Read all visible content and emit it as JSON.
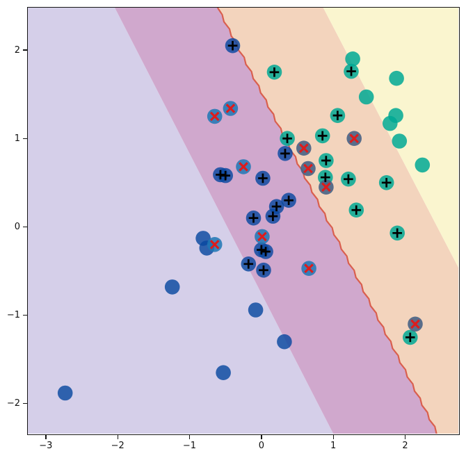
{
  "figure": {
    "background": "#ffffff",
    "border_color": "#151515"
  },
  "chart_data": {
    "type": "scatter",
    "title": "",
    "xlabel": "",
    "ylabel": "",
    "grid": false,
    "legend": null,
    "xlim": [
      -3.25,
      2.74
    ],
    "ylim": [
      -2.34,
      2.48
    ],
    "x_ticks": [
      {
        "value": -3,
        "label": "−3"
      },
      {
        "value": -2,
        "label": "−2"
      },
      {
        "value": -1,
        "label": "−1"
      },
      {
        "value": 0,
        "label": "0"
      },
      {
        "value": 1,
        "label": "1"
      },
      {
        "value": 2,
        "label": "2"
      }
    ],
    "y_ticks": [
      {
        "value": 2,
        "label": "2"
      },
      {
        "value": 1,
        "label": "1"
      },
      {
        "value": 0,
        "label": "0"
      },
      {
        "value": -1,
        "label": "−1"
      },
      {
        "value": -2,
        "label": "−2"
      }
    ],
    "background_regions": [
      {
        "name": "blue-class-region",
        "color": "#d5cfe9",
        "polygon": [
          [
            -3.25,
            2.48
          ],
          [
            -2.04,
            2.48
          ],
          [
            1.0,
            -2.34
          ],
          [
            -3.25,
            -2.34
          ]
        ]
      },
      {
        "name": "blue-margin-band",
        "color": "#d0a8cd",
        "polygon": [
          [
            -2.04,
            2.48
          ],
          [
            -0.61,
            2.48
          ],
          [
            2.45,
            -2.34
          ],
          [
            1.0,
            -2.34
          ]
        ]
      },
      {
        "name": "teal-margin-band",
        "color": "#f3d4bd",
        "polygon": [
          [
            -0.61,
            2.48
          ],
          [
            0.86,
            2.48
          ],
          [
            2.74,
            -0.46
          ],
          [
            2.74,
            -2.34
          ],
          [
            2.45,
            -2.34
          ]
        ]
      },
      {
        "name": "teal-class-region",
        "color": "#faf5cf",
        "polygon": [
          [
            0.86,
            2.48
          ],
          [
            2.74,
            2.48
          ],
          [
            2.74,
            -0.46
          ]
        ]
      }
    ],
    "decision_boundary": {
      "color": "#d95f4e",
      "width": 2.2,
      "from": [
        -0.61,
        2.48
      ],
      "to": [
        2.45,
        -2.34
      ]
    },
    "classes": {
      "blue": {
        "fill": "rgba(8,72,160,0.82)"
      },
      "teal": {
        "fill": "rgba(0,168,148,0.85)"
      },
      "blue-x": {
        "fill": "rgba(31,119,180,0.85)"
      },
      "teal-x": {
        "fill": "rgba(72,98,132,0.90)"
      }
    },
    "markers": {
      "plus_color": "#000000",
      "cross_color": "#dd1c1c"
    },
    "points": [
      {
        "x": -2.73,
        "y": -1.88,
        "class": "blue",
        "marker": "none"
      },
      {
        "x": -1.24,
        "y": -0.68,
        "class": "blue",
        "marker": "none"
      },
      {
        "x": -0.53,
        "y": -1.65,
        "class": "blue",
        "marker": "none"
      },
      {
        "x": -0.08,
        "y": -0.94,
        "class": "blue",
        "marker": "none"
      },
      {
        "x": 0.32,
        "y": -1.3,
        "class": "blue",
        "marker": "none"
      },
      {
        "x": -0.81,
        "y": -0.13,
        "class": "blue",
        "marker": "none"
      },
      {
        "x": -0.76,
        "y": -0.24,
        "class": "blue",
        "marker": "none"
      },
      {
        "x": 1.27,
        "y": 1.9,
        "class": "teal",
        "marker": "none"
      },
      {
        "x": 1.88,
        "y": 1.68,
        "class": "teal",
        "marker": "none"
      },
      {
        "x": 1.46,
        "y": 1.47,
        "class": "teal",
        "marker": "none"
      },
      {
        "x": 1.87,
        "y": 1.26,
        "class": "teal",
        "marker": "none"
      },
      {
        "x": 1.79,
        "y": 1.17,
        "class": "teal",
        "marker": "none"
      },
      {
        "x": 1.92,
        "y": 0.97,
        "class": "teal",
        "marker": "none"
      },
      {
        "x": 2.24,
        "y": 0.7,
        "class": "teal",
        "marker": "none"
      },
      {
        "x": -0.4,
        "y": 2.05,
        "class": "blue",
        "marker": "plus"
      },
      {
        "x": -0.57,
        "y": 0.59,
        "class": "blue",
        "marker": "plus"
      },
      {
        "x": -0.5,
        "y": 0.58,
        "class": "blue",
        "marker": "plus"
      },
      {
        "x": 0.33,
        "y": 0.83,
        "class": "blue",
        "marker": "plus"
      },
      {
        "x": 0.02,
        "y": 0.55,
        "class": "blue",
        "marker": "plus"
      },
      {
        "x": 0.38,
        "y": 0.3,
        "class": "blue",
        "marker": "plus"
      },
      {
        "x": 0.21,
        "y": 0.23,
        "class": "blue",
        "marker": "plus"
      },
      {
        "x": 0.16,
        "y": 0.12,
        "class": "blue",
        "marker": "plus"
      },
      {
        "x": -0.11,
        "y": 0.1,
        "class": "blue",
        "marker": "plus"
      },
      {
        "x": 0.0,
        "y": -0.26,
        "class": "blue",
        "marker": "plus"
      },
      {
        "x": 0.06,
        "y": -0.28,
        "class": "blue",
        "marker": "plus"
      },
      {
        "x": -0.18,
        "y": -0.42,
        "class": "blue",
        "marker": "plus"
      },
      {
        "x": 0.03,
        "y": -0.49,
        "class": "blue",
        "marker": "plus"
      },
      {
        "x": 0.18,
        "y": 1.75,
        "class": "teal",
        "marker": "plus"
      },
      {
        "x": 1.25,
        "y": 1.76,
        "class": "teal",
        "marker": "plus"
      },
      {
        "x": 0.36,
        "y": 1.0,
        "class": "teal",
        "marker": "plus"
      },
      {
        "x": 0.85,
        "y": 1.03,
        "class": "teal",
        "marker": "plus"
      },
      {
        "x": 1.06,
        "y": 1.26,
        "class": "teal",
        "marker": "plus"
      },
      {
        "x": 0.9,
        "y": 0.75,
        "class": "teal",
        "marker": "plus"
      },
      {
        "x": 0.89,
        "y": 0.56,
        "class": "teal",
        "marker": "plus"
      },
      {
        "x": 1.21,
        "y": 0.54,
        "class": "teal",
        "marker": "plus"
      },
      {
        "x": 1.74,
        "y": 0.5,
        "class": "teal",
        "marker": "plus"
      },
      {
        "x": 1.32,
        "y": 0.19,
        "class": "teal",
        "marker": "plus"
      },
      {
        "x": 1.89,
        "y": -0.07,
        "class": "teal",
        "marker": "plus"
      },
      {
        "x": 2.07,
        "y": -1.25,
        "class": "teal",
        "marker": "plus"
      },
      {
        "x": -0.65,
        "y": 1.25,
        "class": "blue-x",
        "marker": "cross"
      },
      {
        "x": -0.43,
        "y": 1.34,
        "class": "blue-x",
        "marker": "cross"
      },
      {
        "x": -0.25,
        "y": 0.68,
        "class": "blue-x",
        "marker": "cross"
      },
      {
        "x": -0.65,
        "y": -0.2,
        "class": "blue-x",
        "marker": "cross"
      },
      {
        "x": 0.01,
        "y": -0.11,
        "class": "blue-x",
        "marker": "cross"
      },
      {
        "x": 0.66,
        "y": -0.47,
        "class": "blue-x",
        "marker": "cross"
      },
      {
        "x": 0.59,
        "y": 0.89,
        "class": "teal-x",
        "marker": "cross"
      },
      {
        "x": 0.65,
        "y": 0.66,
        "class": "teal-x",
        "marker": "cross"
      },
      {
        "x": 0.9,
        "y": 0.45,
        "class": "teal-x",
        "marker": "cross"
      },
      {
        "x": 1.29,
        "y": 1.0,
        "class": "teal-x",
        "marker": "cross"
      },
      {
        "x": 2.14,
        "y": -1.1,
        "class": "teal-x",
        "marker": "cross"
      }
    ]
  }
}
